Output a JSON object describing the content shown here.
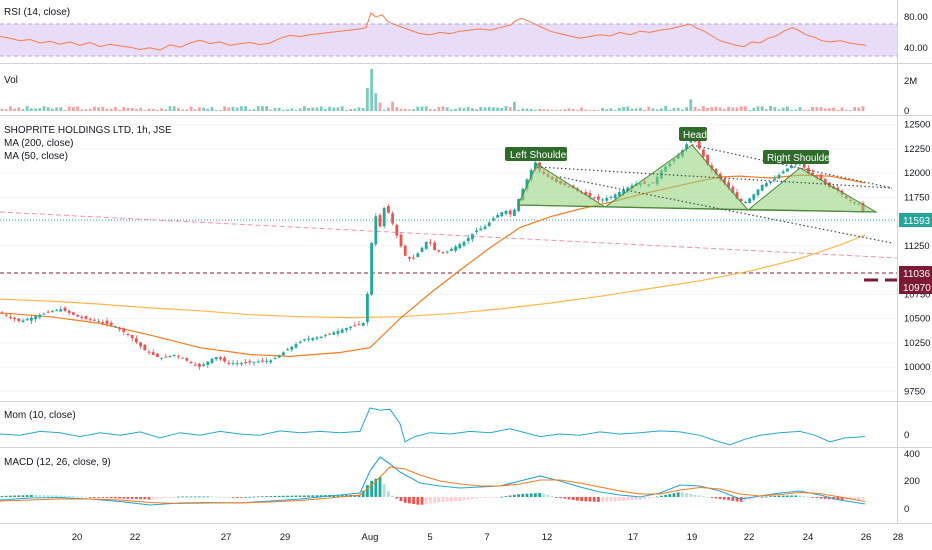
{
  "chart_data": {
    "type": "candlestick",
    "title": "SHOPRITE HOLDINGS LTD, 1h, JSE",
    "series_labels": {
      "ma200": "MA (200, close)",
      "ma50": "MA (50, close)"
    },
    "x_ticks": [
      "20",
      "22",
      "27",
      "29",
      "Aug",
      "5",
      "7",
      "12",
      "17",
      "19",
      "22",
      "24",
      "26",
      "28"
    ],
    "price_axis": {
      "range": [
        9650,
        12600
      ],
      "ticks": [
        "12500",
        "12250",
        "12000",
        "11750",
        "11500",
        "11250",
        "10750",
        "10500",
        "10250",
        "10000",
        "9750"
      ],
      "last_price_tag": "11593",
      "level_tags": [
        "11036",
        "10970"
      ]
    },
    "pattern_labels": {
      "left_shoulder": "Left Shoulder",
      "head": "Head",
      "right_shoulder": "Right Shoulder"
    },
    "price_path": [
      [
        0,
        10560
      ],
      [
        20,
        10470
      ],
      [
        40,
        10540
      ],
      [
        60,
        10600
      ],
      [
        80,
        10510
      ],
      [
        100,
        10470
      ],
      [
        115,
        10420
      ],
      [
        130,
        10320
      ],
      [
        145,
        10170
      ],
      [
        160,
        10090
      ],
      [
        175,
        10130
      ],
      [
        190,
        10050
      ],
      [
        200,
        10000
      ],
      [
        215,
        10110
      ],
      [
        228,
        10040
      ],
      [
        242,
        10040
      ],
      [
        260,
        10060
      ],
      [
        272,
        10070
      ],
      [
        290,
        10200
      ],
      [
        305,
        10290
      ],
      [
        320,
        10310
      ],
      [
        340,
        10380
      ],
      [
        355,
        10430
      ],
      [
        365,
        10460
      ],
      [
        371,
        11200
      ],
      [
        374,
        11600
      ],
      [
        380,
        11450
      ],
      [
        385,
        11680
      ],
      [
        392,
        11500
      ],
      [
        398,
        11320
      ],
      [
        405,
        11150
      ],
      [
        412,
        11100
      ],
      [
        420,
        11200
      ],
      [
        428,
        11320
      ],
      [
        435,
        11200
      ],
      [
        445,
        11180
      ],
      [
        455,
        11240
      ],
      [
        465,
        11300
      ],
      [
        475,
        11400
      ],
      [
        485,
        11450
      ],
      [
        495,
        11550
      ],
      [
        505,
        11620
      ],
      [
        512,
        11560
      ],
      [
        518,
        11720
      ],
      [
        522,
        11820
      ],
      [
        528,
        11960
      ],
      [
        535,
        12120
      ],
      [
        540,
        12020
      ],
      [
        548,
        11960
      ],
      [
        558,
        11900
      ],
      [
        570,
        11860
      ],
      [
        585,
        11780
      ],
      [
        600,
        11720
      ],
      [
        612,
        11760
      ],
      [
        625,
        11840
      ],
      [
        638,
        11900
      ],
      [
        652,
        11880
      ],
      [
        662,
        12040
      ],
      [
        672,
        12120
      ],
      [
        682,
        12230
      ],
      [
        690,
        12350
      ],
      [
        694,
        12340
      ],
      [
        700,
        12240
      ],
      [
        708,
        12080
      ],
      [
        718,
        11960
      ],
      [
        728,
        11860
      ],
      [
        738,
        11720
      ],
      [
        745,
        11700
      ],
      [
        752,
        11760
      ],
      [
        762,
        11880
      ],
      [
        772,
        11920
      ],
      [
        782,
        12010
      ],
      [
        792,
        12080
      ],
      [
        800,
        12120
      ],
      [
        808,
        12000
      ],
      [
        818,
        11960
      ],
      [
        828,
        11860
      ],
      [
        838,
        11820
      ],
      [
        848,
        11720
      ],
      [
        858,
        11690
      ],
      [
        864,
        11593
      ]
    ],
    "ma50": [
      [
        0,
        10560
      ],
      [
        50,
        10520
      ],
      [
        100,
        10450
      ],
      [
        150,
        10330
      ],
      [
        200,
        10200
      ],
      [
        250,
        10130
      ],
      [
        290,
        10110
      ],
      [
        340,
        10150
      ],
      [
        370,
        10200
      ],
      [
        400,
        10500
      ],
      [
        430,
        10760
      ],
      [
        460,
        11000
      ],
      [
        490,
        11230
      ],
      [
        520,
        11440
      ],
      [
        550,
        11550
      ],
      [
        580,
        11630
      ],
      [
        610,
        11700
      ],
      [
        640,
        11780
      ],
      [
        670,
        11850
      ],
      [
        700,
        11920
      ],
      [
        720,
        11960
      ],
      [
        740,
        11970
      ],
      [
        770,
        11950
      ],
      [
        800,
        11980
      ],
      [
        830,
        11970
      ],
      [
        865,
        11900
      ]
    ],
    "ma200": [
      [
        0,
        10700
      ],
      [
        50,
        10680
      ],
      [
        100,
        10650
      ],
      [
        150,
        10610
      ],
      [
        200,
        10580
      ],
      [
        250,
        10540
      ],
      [
        300,
        10520
      ],
      [
        350,
        10510
      ],
      [
        400,
        10520
      ],
      [
        450,
        10550
      ],
      [
        500,
        10600
      ],
      [
        550,
        10660
      ],
      [
        600,
        10730
      ],
      [
        650,
        10810
      ],
      [
        700,
        10890
      ],
      [
        750,
        10990
      ],
      [
        800,
        11120
      ],
      [
        840,
        11260
      ],
      [
        865,
        11360
      ]
    ],
    "rsi": {
      "label": "RSI (14, close)",
      "ticks": [
        "80.00",
        "40.00"
      ],
      "band": [
        30,
        70
      ],
      "values": [
        [
          0,
          55
        ],
        [
          10,
          52
        ],
        [
          20,
          48
        ],
        [
          30,
          50
        ],
        [
          40,
          44
        ],
        [
          50,
          47
        ],
        [
          60,
          42
        ],
        [
          70,
          46
        ],
        [
          80,
          40
        ],
        [
          90,
          45
        ],
        [
          100,
          38
        ],
        [
          110,
          42
        ],
        [
          120,
          39
        ],
        [
          130,
          37
        ],
        [
          140,
          33
        ],
        [
          150,
          36
        ],
        [
          160,
          32
        ],
        [
          170,
          41
        ],
        [
          180,
          37
        ],
        [
          190,
          44
        ],
        [
          200,
          49
        ],
        [
          210,
          43
        ],
        [
          220,
          46
        ],
        [
          230,
          40
        ],
        [
          240,
          43
        ],
        [
          250,
          45
        ],
        [
          260,
          41
        ],
        [
          270,
          44
        ],
        [
          280,
          52
        ],
        [
          290,
          57
        ],
        [
          300,
          55
        ],
        [
          310,
          58
        ],
        [
          320,
          60
        ],
        [
          330,
          62
        ],
        [
          340,
          64
        ],
        [
          350,
          66
        ],
        [
          360,
          68
        ],
        [
          366,
          70
        ],
        [
          371,
          95
        ],
        [
          376,
          88
        ],
        [
          382,
          92
        ],
        [
          388,
          80
        ],
        [
          394,
          76
        ],
        [
          400,
          72
        ],
        [
          410,
          66
        ],
        [
          420,
          60
        ],
        [
          430,
          58
        ],
        [
          440,
          62
        ],
        [
          450,
          60
        ],
        [
          460,
          64
        ],
        [
          470,
          66
        ],
        [
          480,
          68
        ],
        [
          490,
          66
        ],
        [
          500,
          70
        ],
        [
          510,
          74
        ],
        [
          516,
          82
        ],
        [
          522,
          86
        ],
        [
          530,
          80
        ],
        [
          540,
          72
        ],
        [
          550,
          64
        ],
        [
          560,
          60
        ],
        [
          570,
          56
        ],
        [
          580,
          52
        ],
        [
          590,
          55
        ],
        [
          600,
          58
        ],
        [
          610,
          56
        ],
        [
          620,
          62
        ],
        [
          630,
          58
        ],
        [
          640,
          64
        ],
        [
          650,
          62
        ],
        [
          660,
          66
        ],
        [
          670,
          68
        ],
        [
          680,
          72
        ],
        [
          690,
          76
        ],
        [
          696,
          70
        ],
        [
          704,
          64
        ],
        [
          712,
          56
        ],
        [
          720,
          48
        ],
        [
          728,
          44
        ],
        [
          736,
          40
        ],
        [
          744,
          38
        ],
        [
          752,
          46
        ],
        [
          760,
          44
        ],
        [
          768,
          52
        ],
        [
          776,
          56
        ],
        [
          784,
          64
        ],
        [
          792,
          70
        ],
        [
          798,
          66
        ],
        [
          806,
          58
        ],
        [
          814,
          54
        ],
        [
          822,
          48
        ],
        [
          830,
          46
        ],
        [
          840,
          48
        ],
        [
          850,
          44
        ],
        [
          858,
          42
        ],
        [
          866,
          40
        ]
      ]
    },
    "volume": {
      "label": "Vol",
      "ticks": [
        "2M",
        "0"
      ],
      "spikes": [
        [
          371,
          1
        ],
        [
          369,
          0.55
        ],
        [
          374,
          0.42
        ],
        [
          380,
          0.2
        ],
        [
          394,
          0.22
        ],
        [
          516,
          0.22
        ],
        [
          690,
          0.28
        ],
        [
          702,
          0.12
        ]
      ]
    },
    "momentum": {
      "label": "Mom (10, close)",
      "ticks": [
        "0"
      ],
      "values": [
        [
          0,
          0
        ],
        [
          20,
          -0.05
        ],
        [
          40,
          0.1
        ],
        [
          60,
          0.05
        ],
        [
          80,
          -0.1
        ],
        [
          100,
          0.05
        ],
        [
          120,
          -0.05
        ],
        [
          140,
          0.08
        ],
        [
          160,
          -0.15
        ],
        [
          180,
          0.05
        ],
        [
          200,
          -0.05
        ],
        [
          220,
          0.1
        ],
        [
          240,
          0
        ],
        [
          260,
          -0.05
        ],
        [
          280,
          0.12
        ],
        [
          300,
          0.05
        ],
        [
          320,
          0.1
        ],
        [
          340,
          0.05
        ],
        [
          360,
          0.1
        ],
        [
          370,
          1
        ],
        [
          380,
          0.92
        ],
        [
          390,
          0.95
        ],
        [
          400,
          0.4
        ],
        [
          405,
          -0.3
        ],
        [
          415,
          -0.1
        ],
        [
          430,
          0.05
        ],
        [
          450,
          0
        ],
        [
          470,
          0.1
        ],
        [
          490,
          0.05
        ],
        [
          510,
          0.2
        ],
        [
          520,
          0.1
        ],
        [
          540,
          -0.1
        ],
        [
          560,
          0
        ],
        [
          580,
          -0.05
        ],
        [
          600,
          0.08
        ],
        [
          620,
          0
        ],
        [
          640,
          0.05
        ],
        [
          660,
          0.12
        ],
        [
          680,
          0.08
        ],
        [
          700,
          -0.05
        ],
        [
          715,
          -0.25
        ],
        [
          730,
          -0.42
        ],
        [
          745,
          -0.2
        ],
        [
          760,
          -0.05
        ],
        [
          780,
          0.05
        ],
        [
          800,
          0.1
        ],
        [
          815,
          -0.05
        ],
        [
          830,
          -0.3
        ],
        [
          845,
          -0.15
        ],
        [
          865,
          -0.1
        ]
      ]
    },
    "macd": {
      "label": "MACD (12, 26, close, 9)",
      "ticks": [
        "400",
        "200",
        "0"
      ],
      "range": [
        -250,
        450
      ],
      "macd_line": [
        [
          0,
          -30
        ],
        [
          30,
          -10
        ],
        [
          60,
          -5
        ],
        [
          90,
          -20
        ],
        [
          120,
          -45
        ],
        [
          150,
          -80
        ],
        [
          180,
          -60
        ],
        [
          210,
          -55
        ],
        [
          240,
          -60
        ],
        [
          270,
          -40
        ],
        [
          300,
          -20
        ],
        [
          330,
          10
        ],
        [
          360,
          40
        ],
        [
          370,
          260
        ],
        [
          380,
          400
        ],
        [
          390,
          330
        ],
        [
          400,
          250
        ],
        [
          420,
          140
        ],
        [
          440,
          110
        ],
        [
          460,
          90
        ],
        [
          480,
          100
        ],
        [
          500,
          110
        ],
        [
          520,
          160
        ],
        [
          540,
          210
        ],
        [
          560,
          160
        ],
        [
          580,
          100
        ],
        [
          600,
          50
        ],
        [
          620,
          20
        ],
        [
          640,
          0
        ],
        [
          660,
          40
        ],
        [
          680,
          120
        ],
        [
          700,
          110
        ],
        [
          720,
          60
        ],
        [
          740,
          -20
        ],
        [
          760,
          10
        ],
        [
          780,
          40
        ],
        [
          800,
          60
        ],
        [
          820,
          20
        ],
        [
          840,
          -30
        ],
        [
          865,
          -70
        ]
      ],
      "signal_line": [
        [
          0,
          -40
        ],
        [
          30,
          -30
        ],
        [
          60,
          -20
        ],
        [
          90,
          -20
        ],
        [
          120,
          -30
        ],
        [
          150,
          -55
        ],
        [
          180,
          -65
        ],
        [
          210,
          -60
        ],
        [
          240,
          -58
        ],
        [
          270,
          -50
        ],
        [
          300,
          -35
        ],
        [
          330,
          -10
        ],
        [
          360,
          20
        ],
        [
          375,
          150
        ],
        [
          390,
          300
        ],
        [
          405,
          280
        ],
        [
          420,
          220
        ],
        [
          440,
          160
        ],
        [
          460,
          130
        ],
        [
          480,
          110
        ],
        [
          500,
          110
        ],
        [
          520,
          130
        ],
        [
          540,
          170
        ],
        [
          560,
          170
        ],
        [
          580,
          140
        ],
        [
          600,
          100
        ],
        [
          620,
          60
        ],
        [
          640,
          30
        ],
        [
          660,
          30
        ],
        [
          680,
          70
        ],
        [
          700,
          95
        ],
        [
          720,
          80
        ],
        [
          740,
          30
        ],
        [
          760,
          10
        ],
        [
          780,
          25
        ],
        [
          800,
          45
        ],
        [
          820,
          35
        ],
        [
          840,
          0
        ],
        [
          865,
          -45
        ]
      ]
    },
    "colors": {
      "ma50": "#f57c1f",
      "ma200": "#ffb74d",
      "rsi": "#f57b4a",
      "rsi_band": "#e9dcf7",
      "momentum": "#26a6d1",
      "macd": "#26a6d1",
      "signal": "#f57c1f",
      "up": "#26a69a",
      "down": "#ef5350",
      "pattern_fill": "#8fcf77",
      "pattern_label_bg": "#2e6b2a",
      "price_tag": "#26a69a",
      "level_tag": "#7b1a33"
    }
  }
}
